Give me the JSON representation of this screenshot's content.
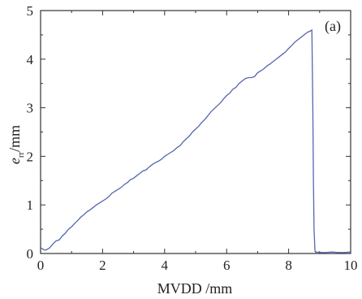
{
  "chart_data": {
    "type": "line",
    "panel_label": "(a)",
    "xlabel": "MVDD /mm",
    "ylabel": {
      "main": "e",
      "subscript": "rr",
      "unit": "/mm"
    },
    "xlim": [
      0,
      10
    ],
    "ylim": [
      0,
      5
    ],
    "xticks": [
      0,
      2,
      4,
      6,
      8,
      10
    ],
    "yticks": [
      0,
      1,
      2,
      3,
      4,
      5
    ],
    "grid": false,
    "line_color": "#5566b0",
    "series": [
      {
        "x": [
          0.0,
          0.05,
          0.1,
          0.15,
          0.2,
          0.3,
          0.4,
          0.5,
          0.6,
          0.7,
          0.8,
          0.9,
          1.0,
          1.1,
          1.2,
          1.3,
          1.4,
          1.5,
          1.6,
          1.7,
          1.8,
          1.9,
          2.0,
          2.1,
          2.2,
          2.3,
          2.4,
          2.5,
          2.6,
          2.7,
          2.8,
          2.9,
          3.0,
          3.1,
          3.2,
          3.3,
          3.4,
          3.5,
          3.6,
          3.7,
          3.8,
          3.9,
          4.0,
          4.1,
          4.2,
          4.3,
          4.4,
          4.5,
          4.6,
          4.7,
          4.8,
          4.9,
          5.0,
          5.1,
          5.2,
          5.3,
          5.4,
          5.5,
          5.6,
          5.7,
          5.8,
          5.9,
          6.0,
          6.1,
          6.2,
          6.3,
          6.4,
          6.5,
          6.6,
          6.7,
          6.8,
          6.9,
          7.0,
          7.1,
          7.2,
          7.3,
          7.4,
          7.5,
          7.6,
          7.7,
          7.8,
          7.9,
          8.0,
          8.1,
          8.2,
          8.3,
          8.4,
          8.5,
          8.6,
          8.7,
          8.75,
          8.78,
          8.8,
          8.82,
          8.85,
          8.88,
          8.9,
          9.0,
          9.2,
          9.4,
          9.6,
          9.8,
          10.0
        ],
        "y": [
          0.12,
          0.1,
          0.08,
          0.07,
          0.08,
          0.12,
          0.2,
          0.26,
          0.28,
          0.36,
          0.42,
          0.5,
          0.55,
          0.62,
          0.68,
          0.75,
          0.8,
          0.86,
          0.9,
          0.95,
          1.0,
          1.04,
          1.08,
          1.12,
          1.17,
          1.24,
          1.28,
          1.32,
          1.36,
          1.42,
          1.46,
          1.52,
          1.55,
          1.6,
          1.65,
          1.7,
          1.72,
          1.78,
          1.83,
          1.87,
          1.9,
          1.94,
          2.0,
          2.04,
          2.08,
          2.12,
          2.18,
          2.22,
          2.3,
          2.36,
          2.42,
          2.5,
          2.56,
          2.62,
          2.7,
          2.76,
          2.84,
          2.92,
          2.98,
          3.04,
          3.1,
          3.18,
          3.25,
          3.3,
          3.38,
          3.42,
          3.5,
          3.55,
          3.6,
          3.62,
          3.62,
          3.64,
          3.72,
          3.76,
          3.8,
          3.86,
          3.9,
          3.95,
          4.0,
          4.05,
          4.1,
          4.15,
          4.22,
          4.28,
          4.35,
          4.4,
          4.45,
          4.5,
          4.55,
          4.58,
          4.6,
          3.0,
          1.5,
          0.5,
          0.05,
          0.02,
          0.03,
          0.02,
          0.02,
          0.03,
          0.02,
          0.02,
          0.03
        ]
      }
    ]
  }
}
